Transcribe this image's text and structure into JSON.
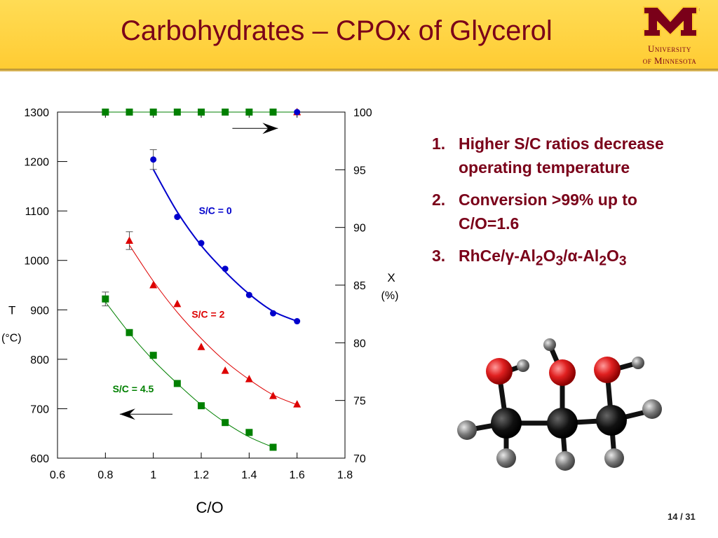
{
  "slide": {
    "title": "Carbohydrates – CPOx of Glycerol",
    "logo_line1": "University",
    "logo_line2": "of Minnesota",
    "page_number": "14 / 31"
  },
  "findings": [
    {
      "num": "1.",
      "text": "Higher S/C ratios decrease operating temperature"
    },
    {
      "num": "2.",
      "text": "Conversion >99% up to C/O=1.6"
    },
    {
      "num": "3.",
      "parts": [
        "RhCe/",
        "γ",
        "-Al",
        "2",
        "O",
        "3",
        "/",
        "α",
        "-Al",
        "2",
        "O",
        "3"
      ]
    }
  ],
  "colors": {
    "maroon": "#7a0019",
    "gold": "#ffcc33",
    "blue": "#0000cc",
    "red": "#dd0000",
    "green": "#008000"
  },
  "chart_data": {
    "type": "scatter",
    "xlabel": "C/O",
    "ylabel": "T",
    "ylabel_unit": "(oC)",
    "y2label": "X",
    "y2label_unit": "(%)",
    "xlim": [
      0.6,
      1.8
    ],
    "ylim": [
      600,
      1300
    ],
    "y2lim": [
      70,
      100
    ],
    "x_ticks": [
      "0.6",
      "0.8",
      "1",
      "1.2",
      "1.4",
      "1.6",
      "1.8"
    ],
    "y_ticks": [
      "600",
      "700",
      "800",
      "900",
      "1000",
      "1100",
      "1200",
      "1300"
    ],
    "y2_ticks": [
      "70",
      "75",
      "80",
      "85",
      "90",
      "95",
      "100"
    ],
    "temperature_series": [
      {
        "label": "S/C = 0",
        "color": "#0000cc",
        "marker": "circle",
        "x": [
          1.0,
          1.1,
          1.2,
          1.3,
          1.4,
          1.5,
          1.6
        ],
        "y": [
          1204,
          1088,
          1035,
          983,
          930,
          893,
          877
        ],
        "fit": [
          1184,
          1098,
          1030,
          977,
          932,
          897,
          877
        ]
      },
      {
        "label": "S/C = 2",
        "color": "#dd0000",
        "marker": "triangle",
        "x": [
          0.9,
          1.0,
          1.1,
          1.2,
          1.3,
          1.4,
          1.5,
          1.6
        ],
        "y": [
          1040,
          950,
          912,
          825,
          777,
          760,
          726,
          709
        ],
        "fit": [
          1031,
          958,
          895,
          842,
          796,
          759,
          728,
          708
        ]
      },
      {
        "label": "S/C = 4.5",
        "color": "#008000",
        "marker": "square",
        "x": [
          0.8,
          0.9,
          1.0,
          1.1,
          1.2,
          1.3,
          1.4,
          1.5
        ],
        "y": [
          922,
          854,
          808,
          751,
          706,
          672,
          652,
          622
        ],
        "fit": [
          916,
          853,
          798,
          751,
          708,
          672,
          643,
          622
        ]
      }
    ],
    "conversion_series": [
      {
        "color": "#008000",
        "marker": "square",
        "x": [
          0.8,
          0.9,
          1.0,
          1.1,
          1.2,
          1.3,
          1.4,
          1.5
        ],
        "y": [
          100,
          100,
          100,
          100,
          100,
          100,
          100,
          100
        ]
      },
      {
        "color": "#dd0000",
        "marker": "triangle",
        "x": [
          1.6
        ],
        "y": [
          100
        ]
      },
      {
        "color": "#0000cc",
        "marker": "circle",
        "x": [
          1.6
        ],
        "y": [
          100
        ]
      }
    ],
    "error_bars": [
      {
        "x": 1.0,
        "y": 1204,
        "err": 20
      },
      {
        "x": 0.9,
        "y": 1040,
        "err": 18
      },
      {
        "x": 0.8,
        "y": 922,
        "err": 14
      }
    ],
    "arrows": [
      {
        "direction": "right",
        "x1": 1.33,
        "x2": 1.52,
        "y": 1267
      },
      {
        "direction": "left",
        "x1": 1.08,
        "x2": 0.86,
        "y": 689
      }
    ],
    "series_labels": [
      {
        "text": "S/C = 0",
        "x": 1.19,
        "y": 1094,
        "color": "#0000cc"
      },
      {
        "text": "S/C = 2",
        "x": 1.16,
        "y": 884,
        "color": "#dd0000"
      },
      {
        "text": "S/C = 4.5",
        "x": 0.83,
        "y": 733,
        "color": "#008000"
      }
    ]
  }
}
